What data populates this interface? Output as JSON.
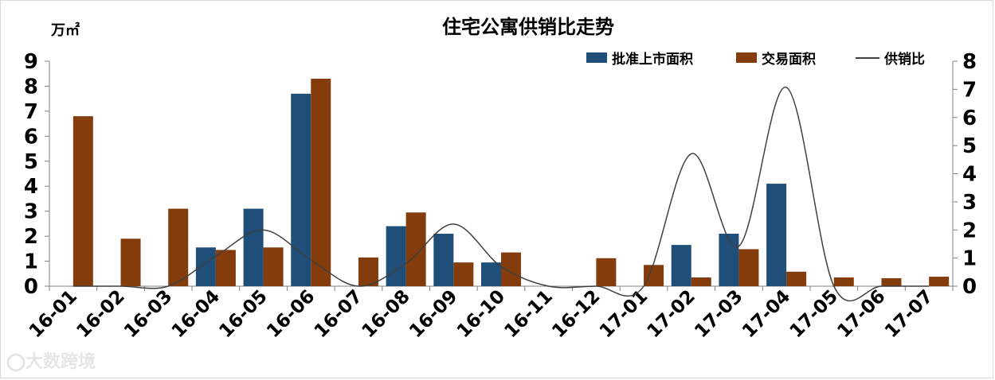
{
  "chart_data": {
    "type": "bar",
    "title": "住宅公寓供销比走势",
    "ylabel_left": "万㎡",
    "categories": [
      "16-01",
      "16-02",
      "16-03",
      "16-04",
      "16-05",
      "16-06",
      "16-07",
      "16-08",
      "16-09",
      "16-10",
      "16-11",
      "16-12",
      "17-01",
      "17-02",
      "17-03",
      "17-04",
      "17-05",
      "17-06",
      "17-07"
    ],
    "series": [
      {
        "name": "批准上市面积",
        "type": "bar",
        "axis": "left",
        "color": "#1f4e79",
        "values": [
          0,
          0,
          0,
          1.55,
          3.1,
          7.7,
          0,
          2.4,
          2.1,
          0.95,
          0,
          0,
          0,
          1.65,
          2.1,
          4.1,
          0,
          0,
          0
        ]
      },
      {
        "name": "交易面积",
        "type": "bar",
        "axis": "left",
        "color": "#843c0c",
        "values": [
          6.8,
          1.9,
          3.1,
          1.45,
          1.55,
          8.3,
          1.15,
          2.95,
          0.95,
          1.35,
          0,
          1.12,
          0.85,
          0.35,
          1.48,
          0.58,
          0.35,
          0.32,
          0.38
        ]
      },
      {
        "name": "供销比",
        "type": "line",
        "axis": "right",
        "color": "#404040",
        "values": [
          0,
          0,
          0,
          1.07,
          2.0,
          0.93,
          0,
          0.81,
          2.21,
          0.7,
          0,
          0,
          0,
          4.71,
          1.42,
          7.07,
          0,
          0,
          0
        ]
      }
    ],
    "ylim_left": [
      0,
      9
    ],
    "ylim_right": [
      0,
      8
    ],
    "yticks_left": [
      0,
      1,
      2,
      3,
      4,
      5,
      6,
      7,
      8,
      9
    ],
    "yticks_right": [
      0,
      1,
      2,
      3,
      4,
      5,
      6,
      7,
      8
    ],
    "legend_position": "top-right",
    "grid": false
  },
  "watermark": "大数跨境"
}
